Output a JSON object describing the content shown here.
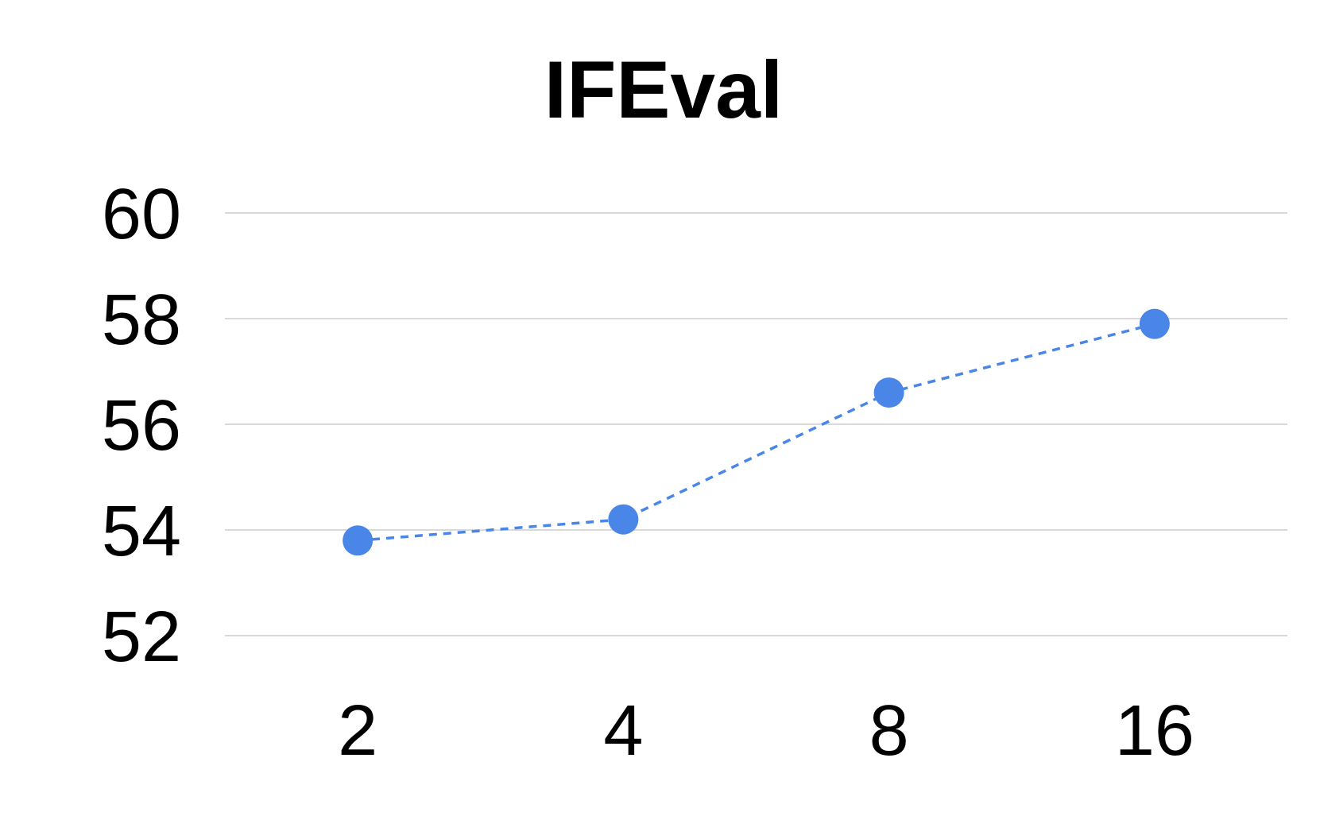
{
  "chart_data": {
    "type": "line",
    "title": "IFEval",
    "xlabel": "",
    "ylabel": "",
    "categories": [
      "2",
      "4",
      "8",
      "16"
    ],
    "yticks": [
      "52",
      "54",
      "56",
      "58",
      "60"
    ],
    "ylim": [
      52,
      60
    ],
    "grid": true,
    "legend": "none",
    "series": [
      {
        "values": [
          53.8,
          54.2,
          56.6,
          57.9
        ],
        "color": "#4a86e8",
        "line_style": "dashed",
        "marker": "circle"
      }
    ]
  }
}
